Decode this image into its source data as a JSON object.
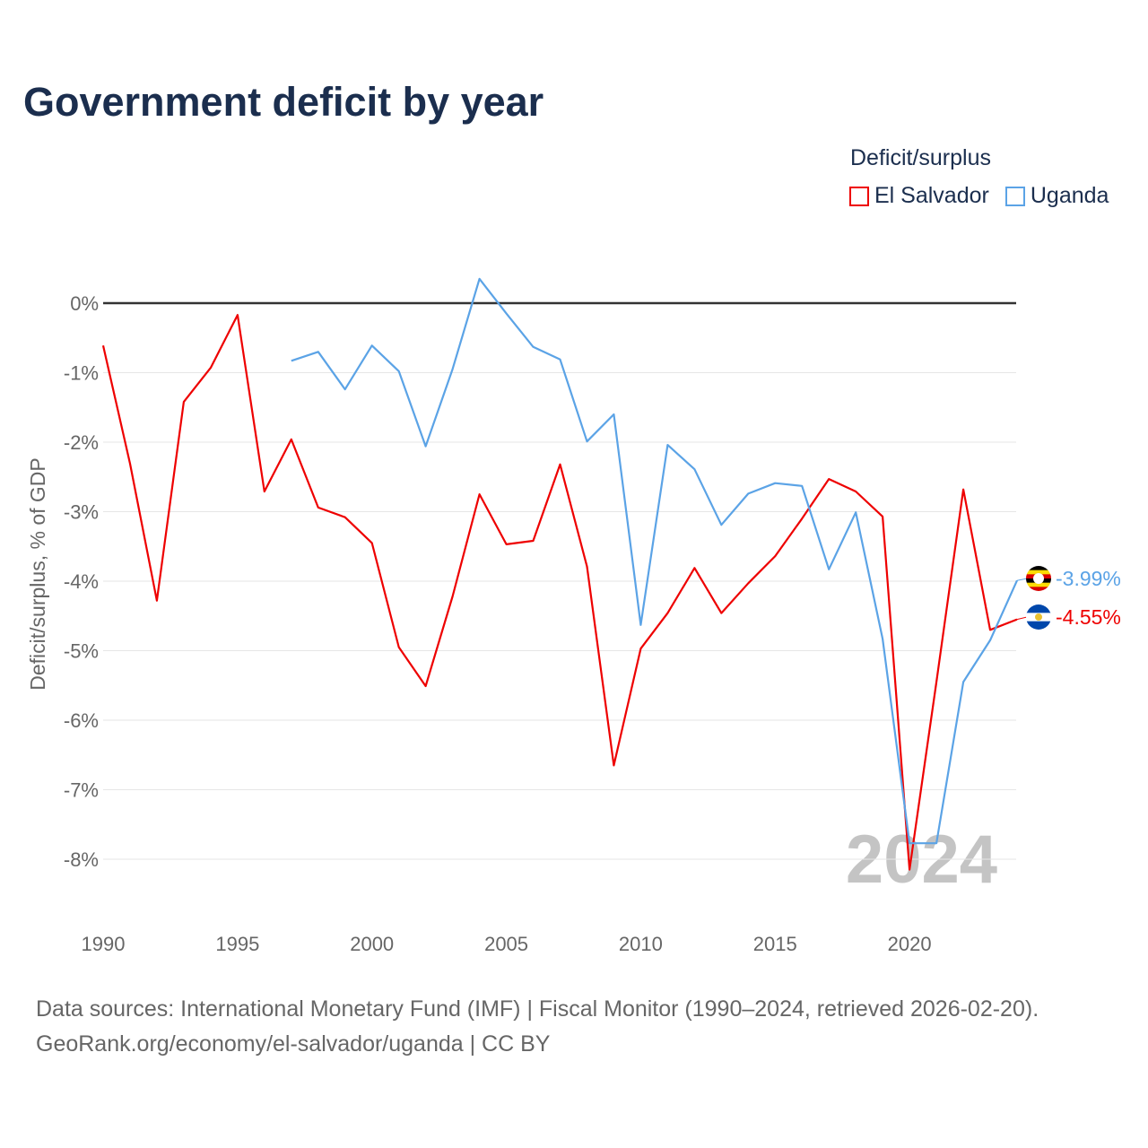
{
  "chart_data": {
    "type": "line",
    "title": "Government deficit by year",
    "xlabel": "",
    "ylabel": "Deficit/surplus, % of GDP",
    "legend_title": "Deficit/surplus",
    "legend_position": "top-right",
    "xlim": [
      1990,
      2024
    ],
    "ylim": [
      -8.6,
      0.5
    ],
    "x_ticks": [
      "1990",
      "1995",
      "2000",
      "2005",
      "2010",
      "2015",
      "2020"
    ],
    "y_ticks": [
      "0%",
      "-1%",
      "-2%",
      "-3%",
      "-4%",
      "-5%",
      "-6%",
      "-7%",
      "-8%"
    ],
    "year_watermark": "2024",
    "series": [
      {
        "name": "El Salvador",
        "color": "#ee0000",
        "end_label": "-4.55%",
        "start_year": 1990,
        "values": [
          -0.61,
          -2.31,
          -4.28,
          -1.42,
          -0.93,
          -0.17,
          -2.71,
          -1.96,
          -2.94,
          -3.08,
          -3.45,
          -4.95,
          -5.51,
          -4.22,
          -2.75,
          -3.47,
          -3.42,
          -2.32,
          -3.79,
          -6.65,
          -4.97,
          -4.46,
          -3.81,
          -4.46,
          -4.03,
          -3.64,
          -3.1,
          -2.53,
          -2.71,
          -3.07,
          -8.15,
          -5.45,
          -2.68,
          -4.7,
          -4.55
        ]
      },
      {
        "name": "Uganda",
        "color": "#5ba3e6",
        "end_label": "-3.99%",
        "start_year": 1997,
        "values": [
          -0.83,
          -0.7,
          -1.24,
          -0.61,
          -0.98,
          -2.06,
          -0.95,
          0.35,
          -0.15,
          -0.63,
          -0.81,
          -1.99,
          -1.6,
          -4.63,
          -2.04,
          -2.39,
          -3.19,
          -2.74,
          -2.59,
          -2.63,
          -3.83,
          -3.01,
          -4.83,
          -7.77,
          -7.77,
          -5.45,
          -4.85,
          -3.99
        ]
      }
    ]
  },
  "source": {
    "line1": "Data sources: International Monetary Fund (IMF) | Fiscal Monitor (1990–2024, retrieved 2026-02-20).",
    "line2": "GeoRank.org/economy/el-salvador/uganda | CC BY"
  }
}
